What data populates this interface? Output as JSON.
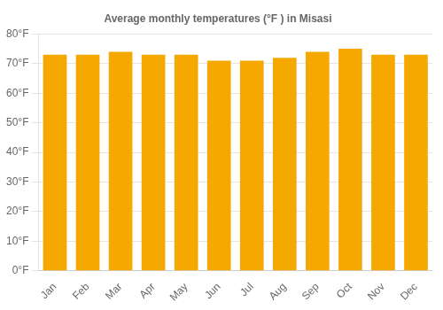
{
  "chart_data": {
    "type": "bar",
    "title": "Average monthly temperatures (°F ) in Misasi",
    "categories": [
      "Jan",
      "Feb",
      "Mar",
      "Apr",
      "May",
      "Jun",
      "Jul",
      "Aug",
      "Sep",
      "Oct",
      "Nov",
      "Dec"
    ],
    "values": [
      73,
      73,
      74,
      73,
      73,
      71,
      71,
      72,
      74,
      75,
      73,
      73
    ],
    "color": "#F5A800",
    "ylim": [
      0,
      80
    ],
    "yticks": [
      {
        "value": 0,
        "label": "0°F"
      },
      {
        "value": 10,
        "label": "10°F"
      },
      {
        "value": 20,
        "label": "20°F"
      },
      {
        "value": 30,
        "label": "30°F"
      },
      {
        "value": 40,
        "label": "40°F"
      },
      {
        "value": 50,
        "label": "50°F"
      },
      {
        "value": 60,
        "label": "60°F"
      },
      {
        "value": 70,
        "label": "70°F"
      },
      {
        "value": 80,
        "label": "80°F"
      }
    ],
    "grid": "y"
  }
}
